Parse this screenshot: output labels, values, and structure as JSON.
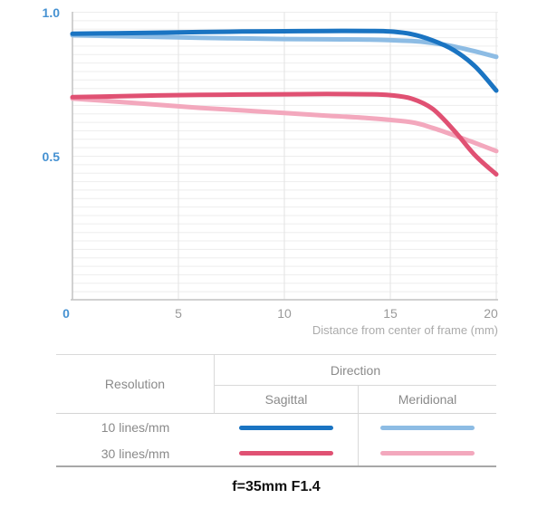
{
  "chart_data": {
    "type": "line",
    "title": "",
    "xlabel": "Distance from center of frame (mm)",
    "ylabel": "",
    "xlim": [
      0,
      20
    ],
    "ylim": [
      0,
      1.0
    ],
    "x_ticks": [
      0,
      5,
      10,
      15,
      20
    ],
    "x_tick_labels": [
      "0",
      "5",
      "10",
      "15",
      "20"
    ],
    "y_ticks": [
      1.0,
      0.5
    ],
    "y_tick_labels": [
      "1.0",
      "0.5"
    ],
    "grid": "fine horizontal rules every ~0.03, vertical rules at x tick marks",
    "legend_position": "table below chart",
    "series": [
      {
        "name": "10 lines/mm Sagittal",
        "color": "#1a74c2",
        "x": [
          0,
          2,
          4,
          6,
          8,
          10,
          12,
          14,
          15,
          16,
          17,
          18,
          19,
          20
        ],
        "y": [
          0.925,
          0.927,
          0.929,
          0.931,
          0.933,
          0.934,
          0.935,
          0.935,
          0.933,
          0.924,
          0.902,
          0.868,
          0.812,
          0.728
        ]
      },
      {
        "name": "10 lines/mm Meridional",
        "color": "#8dbce4",
        "x": [
          0,
          2,
          4,
          6,
          8,
          10,
          12,
          14,
          16,
          17,
          18,
          19,
          20
        ],
        "y": [
          0.92,
          0.917,
          0.914,
          0.911,
          0.909,
          0.907,
          0.906,
          0.905,
          0.9,
          0.893,
          0.881,
          0.864,
          0.845
        ]
      },
      {
        "name": "30 lines/mm Sagittal",
        "color": "#e05173",
        "x": [
          0,
          2,
          4,
          6,
          8,
          10,
          12,
          14,
          15,
          16,
          17,
          18,
          19,
          20
        ],
        "y": [
          0.705,
          0.708,
          0.711,
          0.713,
          0.714,
          0.715,
          0.716,
          0.715,
          0.712,
          0.7,
          0.664,
          0.59,
          0.503,
          0.437
        ]
      },
      {
        "name": "30 lines/mm Meridional",
        "color": "#f3a8bd",
        "x": [
          0,
          2,
          4,
          6,
          8,
          10,
          12,
          14,
          16,
          17,
          18,
          19,
          20
        ],
        "y": [
          0.7,
          0.69,
          0.679,
          0.668,
          0.659,
          0.65,
          0.641,
          0.632,
          0.618,
          0.598,
          0.573,
          0.546,
          0.518
        ]
      }
    ]
  },
  "axis": {
    "x_label": "Distance from center of frame (mm)",
    "y_tick_top": "1.0",
    "y_tick_mid": "0.5",
    "x_tick_0": "0",
    "x_tick_5": "5",
    "x_tick_10": "10",
    "x_tick_15": "15",
    "x_tick_20": "20"
  },
  "legend": {
    "resolution_header": "Resolution",
    "direction_header": "Direction",
    "sagittal_header": "Sagittal",
    "meridional_header": "Meridional",
    "rows": [
      {
        "label": "10 lines/mm"
      },
      {
        "label": "30 lines/mm"
      }
    ]
  },
  "caption": "f=35mm F1.4",
  "colors": {
    "axis_label_blue": "#4692d2",
    "tick_gray": "#9a9a9a",
    "grid_light": "#ededed",
    "grid_vertical": "#e3e3e3",
    "axis_line": "#c2c2c2",
    "table_border": "#d9d9d9",
    "table_bottom_border": "#a8a8a8",
    "table_text": "#8a8a8a",
    "caption_black": "#111111"
  }
}
